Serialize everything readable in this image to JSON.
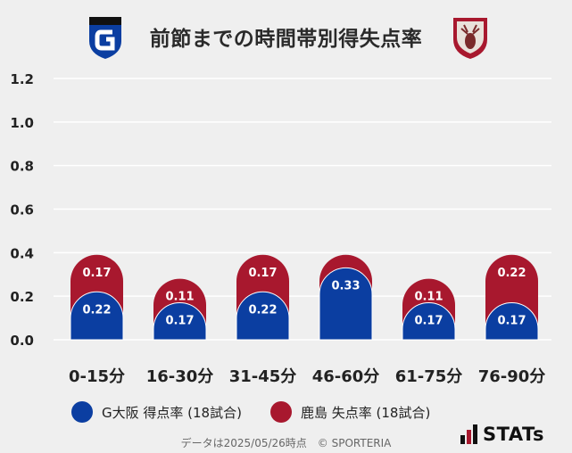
{
  "header": {
    "title": "前節までの時間帯別得失点率"
  },
  "legend": {
    "home_label": "G大阪 得点率 (18試合)",
    "away_label": "鹿島 失点率 (18試合)"
  },
  "footer": {
    "note": "データは2025/05/26時点　© SPORTERIA",
    "brand": "STATs"
  },
  "colors": {
    "home": "#0b3ea1",
    "away": "#a8182e",
    "label_text": "#ffffff",
    "axis_text": "#222222",
    "grid": "#ffffff"
  },
  "chart_data": {
    "type": "bar",
    "stacked": true,
    "title": "前節までの時間帯別得失点率",
    "xlabel": "",
    "ylabel": "",
    "categories": [
      "0-15分",
      "16-30分",
      "31-45分",
      "46-60分",
      "61-75分",
      "76-90分"
    ],
    "series": [
      {
        "name": "G大阪 得点率 (18試合)",
        "values": [
          0.22,
          0.17,
          0.22,
          0.33,
          0.17,
          0.17
        ]
      },
      {
        "name": "鹿島 失点率 (18試合)",
        "values": [
          0.17,
          0.11,
          0.17,
          0.06,
          0.11,
          0.22
        ]
      }
    ],
    "value_labels": [
      [
        "0.22",
        "0.17",
        "0.22",
        "0.33",
        "0.17",
        "0.17"
      ],
      [
        "0.17",
        "0.11",
        "0.17",
        "",
        "0.11",
        "0.22"
      ]
    ],
    "ylim": [
      0,
      1.2
    ],
    "yticks": [
      "0.0",
      "0.2",
      "0.4",
      "0.6",
      "0.8",
      "1.0",
      "1.2"
    ],
    "grid": true,
    "legend_position": "bottom"
  }
}
